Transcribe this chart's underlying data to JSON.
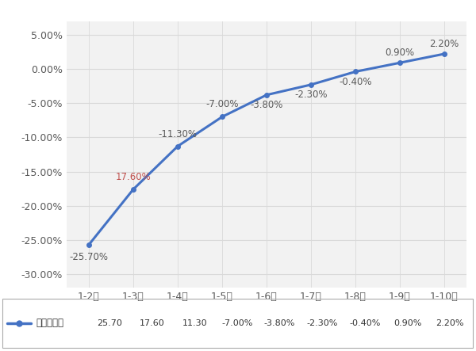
{
  "categories": [
    "1-2月",
    "1-3月",
    "1-4月",
    "1-5月",
    "1-6月",
    "1-7月",
    "1-8月",
    "1-9月",
    "1-10月"
  ],
  "values": [
    -25.7,
    -17.6,
    -11.3,
    -7.0,
    -3.8,
    -2.3,
    -0.4,
    0.9,
    2.2
  ],
  "label_texts": [
    "-25.70%",
    "17.60%",
    "-11.30%",
    "-7.00%",
    "-3.80%",
    "-2.30%",
    "-0.40%",
    "0.90%",
    "2.20%"
  ],
  "label_offsets": [
    -1.8,
    1.8,
    1.8,
    1.8,
    -1.5,
    -1.5,
    -1.5,
    1.5,
    1.5
  ],
  "label_ha": [
    "right",
    "right",
    "right",
    "center",
    "center",
    "center",
    "center",
    "center",
    "center"
  ],
  "label_color": "#595959",
  "label_color_17": "#C0504D",
  "line_color": "#4472C4",
  "line_width": 2.2,
  "marker_size": 4,
  "ylim": [
    -32,
    7
  ],
  "yticks": [
    5.0,
    0.0,
    -5.0,
    -10.0,
    -15.0,
    -20.0,
    -25.0,
    -30.0
  ],
  "fig_bg": "#ffffff",
  "plot_bg": "#f2f2f2",
  "grid_color": "#d9d9d9",
  "tick_color": "#595959",
  "legend_label": "同比增长率",
  "legend_table_vals": [
    "25.70",
    "17.60",
    "11.30",
    "-7.00%",
    "-3.80%",
    "-2.30%",
    "-0.40%",
    "0.90%",
    "2.20%"
  ]
}
